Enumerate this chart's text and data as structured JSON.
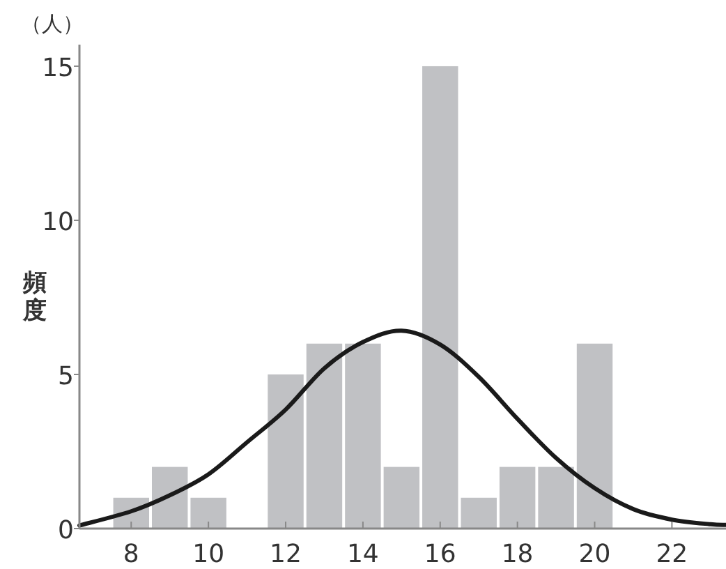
{
  "chart_data": {
    "type": "histogram",
    "ylabel": "頻度",
    "annotations": [
      "（人）"
    ],
    "bins": [
      7.5,
      8.5,
      9.5,
      10.5,
      11.5,
      12.5,
      13.5,
      14.5,
      15.5,
      16.5,
      17.5,
      18.5,
      19.5,
      20.5
    ],
    "series": [
      {
        "color": "#c0c1c4",
        "values": [
          1,
          2,
          1,
          0,
          5,
          6,
          6,
          2,
          15,
          1,
          2,
          2,
          6
        ]
      },
      {
        "type": "line",
        "color": "#1a1a1a",
        "x": [
          6.66,
          8,
          9,
          10,
          11,
          12,
          13,
          14,
          15,
          16,
          17,
          18,
          19,
          20,
          21,
          22,
          23,
          23.4
        ],
        "values": [
          0.1,
          0.56,
          1.08,
          1.76,
          2.8,
          3.86,
          5.2,
          6.05,
          6.42,
          5.97,
          4.92,
          3.56,
          2.29,
          1.31,
          0.63,
          0.29,
          0.14,
          0.12
        ]
      }
    ],
    "xlim": [
      6.66,
      23.4
    ],
    "ylim": [
      0,
      15.7
    ],
    "xticks": [
      8,
      10,
      12,
      14,
      16,
      18,
      20,
      22
    ],
    "yticks": [
      0,
      5,
      10,
      15
    ]
  }
}
